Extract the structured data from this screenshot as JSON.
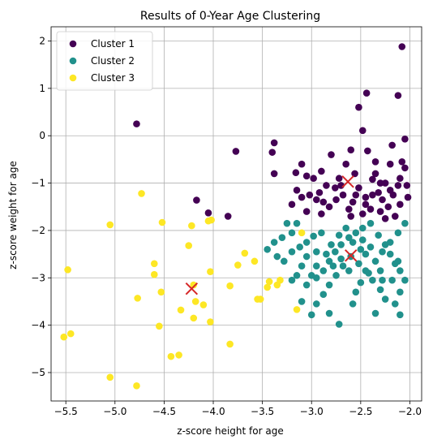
{
  "chart_data": {
    "type": "scatter",
    "title": "Results of 0-Year Age Clustering",
    "xlabel": "z-score height for age",
    "ylabel": "z-score weight for age",
    "xlim": [
      -5.65,
      -1.88
    ],
    "ylim": [
      -5.6,
      2.3
    ],
    "xticks": [
      -5.5,
      -5.0,
      -4.5,
      -4.0,
      -3.5,
      -3.0,
      -2.5,
      -2.0
    ],
    "xtick_labels": [
      "−5.5",
      "−5.0",
      "−4.5",
      "−4.0",
      "−3.5",
      "−3.0",
      "−2.5",
      "−2.0"
    ],
    "yticks": [
      -5,
      -4,
      -3,
      -2,
      -1,
      0,
      1,
      2
    ],
    "ytick_labels": [
      "−5",
      "−4",
      "−3",
      "−2",
      "−1",
      "0",
      "1",
      "2"
    ],
    "grid": true,
    "legend_position": "top-left",
    "series": [
      {
        "name": "Cluster 1",
        "color": "#440154",
        "points": [
          [
            -4.78,
            0.25
          ],
          [
            -3.77,
            -0.33
          ],
          [
            -4.17,
            -1.36
          ],
          [
            -4.05,
            -1.63
          ],
          [
            -3.85,
            -1.7
          ],
          [
            -3.38,
            -0.15
          ],
          [
            -3.4,
            -0.35
          ],
          [
            -3.38,
            -0.8
          ],
          [
            -3.16,
            -0.78
          ],
          [
            -3.1,
            -0.6
          ],
          [
            -3.05,
            -0.85
          ],
          [
            -2.98,
            -0.9
          ],
          [
            -2.92,
            -1.2
          ],
          [
            -2.9,
            -0.75
          ],
          [
            -2.8,
            -0.4
          ],
          [
            -2.72,
            -0.9
          ],
          [
            -2.7,
            -1.05
          ],
          [
            -2.65,
            -0.6
          ],
          [
            -2.6,
            -0.3
          ],
          [
            -2.52,
            0.6
          ],
          [
            -2.44,
            0.9
          ],
          [
            -2.48,
            0.11
          ],
          [
            -2.43,
            -0.32
          ],
          [
            -2.35,
            -0.55
          ],
          [
            -2.38,
            -0.92
          ],
          [
            -2.32,
            -1.2
          ],
          [
            -2.25,
            -1.0
          ],
          [
            -2.2,
            -0.6
          ],
          [
            -2.18,
            -0.2
          ],
          [
            -2.12,
            0.85
          ],
          [
            -2.08,
            1.88
          ],
          [
            -2.05,
            -0.07
          ],
          [
            -2.08,
            -0.55
          ],
          [
            -2.1,
            -0.9
          ],
          [
            -2.03,
            -1.05
          ],
          [
            -2.02,
            -1.3
          ],
          [
            -2.1,
            -1.45
          ],
          [
            -2.15,
            -1.7
          ],
          [
            -2.22,
            -1.5
          ],
          [
            -2.28,
            -1.35
          ],
          [
            -2.38,
            -1.25
          ],
          [
            -2.45,
            -1.45
          ],
          [
            -2.52,
            -1.1
          ],
          [
            -2.58,
            -1.4
          ],
          [
            -2.62,
            -1.55
          ],
          [
            -2.68,
            -1.25
          ],
          [
            -2.75,
            -1.35
          ],
          [
            -2.82,
            -1.5
          ],
          [
            -2.88,
            -1.4
          ],
          [
            -2.95,
            -1.35
          ],
          [
            -3.02,
            -1.25
          ],
          [
            -3.1,
            -1.3
          ],
          [
            -3.15,
            -1.15
          ],
          [
            -3.2,
            -1.45
          ],
          [
            -2.85,
            -1.05
          ],
          [
            -2.76,
            -1.1
          ],
          [
            -2.56,
            -0.8
          ],
          [
            -2.48,
            -1.65
          ],
          [
            -2.4,
            -1.55
          ],
          [
            -2.3,
            -1.6
          ],
          [
            -2.25,
            -1.75
          ],
          [
            -2.6,
            -1.7
          ],
          [
            -2.9,
            -1.65
          ],
          [
            -3.05,
            -1.6
          ],
          [
            -2.17,
            -1.25
          ],
          [
            -2.12,
            -1.05
          ],
          [
            -2.05,
            -0.68
          ],
          [
            -2.45,
            -1.3
          ],
          [
            -2.2,
            -1.15
          ],
          [
            -2.3,
            -1.0
          ],
          [
            -2.35,
            -0.8
          ],
          [
            -2.55,
            -1.25
          ]
        ]
      },
      {
        "name": "Cluster 2",
        "color": "#21918c",
        "points": [
          [
            -3.45,
            -2.4
          ],
          [
            -3.38,
            -2.25
          ],
          [
            -3.3,
            -2.15
          ],
          [
            -3.2,
            -2.05
          ],
          [
            -3.15,
            -1.85
          ],
          [
            -3.25,
            -1.85
          ],
          [
            -3.35,
            -2.55
          ],
          [
            -3.28,
            -2.65
          ],
          [
            -3.2,
            -2.45
          ],
          [
            -3.12,
            -2.35
          ],
          [
            -3.05,
            -2.25
          ],
          [
            -2.98,
            -2.12
          ],
          [
            -2.9,
            -2.05
          ],
          [
            -2.95,
            -2.45
          ],
          [
            -3.05,
            -2.55
          ],
          [
            -3.1,
            -2.75
          ],
          [
            -3.15,
            -2.95
          ],
          [
            -3.2,
            -3.05
          ],
          [
            -3.05,
            -3.15
          ],
          [
            -2.95,
            -3.0
          ],
          [
            -2.88,
            -2.85
          ],
          [
            -2.82,
            -2.65
          ],
          [
            -2.76,
            -2.45
          ],
          [
            -2.7,
            -2.3
          ],
          [
            -2.62,
            -2.15
          ],
          [
            -2.55,
            -2.05
          ],
          [
            -2.48,
            -1.95
          ],
          [
            -2.4,
            -1.85
          ],
          [
            -2.32,
            -2.1
          ],
          [
            -2.25,
            -2.3
          ],
          [
            -2.2,
            -2.5
          ],
          [
            -2.15,
            -2.7
          ],
          [
            -2.1,
            -2.85
          ],
          [
            -2.05,
            -3.05
          ],
          [
            -2.1,
            -3.3
          ],
          [
            -2.15,
            -3.55
          ],
          [
            -2.1,
            -3.78
          ],
          [
            -2.25,
            -3.45
          ],
          [
            -2.3,
            -3.25
          ],
          [
            -2.38,
            -3.05
          ],
          [
            -2.45,
            -2.85
          ],
          [
            -2.52,
            -2.7
          ],
          [
            -2.6,
            -2.55
          ],
          [
            -2.68,
            -2.75
          ],
          [
            -2.75,
            -2.95
          ],
          [
            -2.82,
            -3.15
          ],
          [
            -2.88,
            -3.35
          ],
          [
            -2.95,
            -3.55
          ],
          [
            -3.1,
            -3.5
          ],
          [
            -3.0,
            -3.78
          ],
          [
            -2.82,
            -3.75
          ],
          [
            -2.72,
            -3.98
          ],
          [
            -2.58,
            -3.55
          ],
          [
            -2.55,
            -3.3
          ],
          [
            -2.5,
            -3.1
          ],
          [
            -2.42,
            -2.9
          ],
          [
            -2.35,
            -2.65
          ],
          [
            -2.28,
            -2.45
          ],
          [
            -2.2,
            -2.25
          ],
          [
            -2.12,
            -2.05
          ],
          [
            -2.05,
            -1.85
          ],
          [
            -2.35,
            -3.75
          ],
          [
            -2.5,
            -2.4
          ],
          [
            -2.58,
            -2.25
          ],
          [
            -2.65,
            -1.95
          ],
          [
            -2.72,
            -2.1
          ],
          [
            -2.8,
            -2.3
          ],
          [
            -2.85,
            -2.5
          ],
          [
            -2.78,
            -2.75
          ],
          [
            -2.7,
            -2.6
          ],
          [
            -2.62,
            -2.85
          ],
          [
            -2.45,
            -2.5
          ],
          [
            -2.3,
            -2.85
          ],
          [
            -2.18,
            -3.05
          ],
          [
            -2.12,
            -2.65
          ],
          [
            -2.4,
            -2.35
          ],
          [
            -2.95,
            -2.75
          ],
          [
            -3.0,
            -2.95
          ],
          [
            -2.48,
            -2.2
          ],
          [
            -2.28,
            -3.05
          ]
        ]
      },
      {
        "name": "Cluster 3",
        "color": "#fde725",
        "points": [
          [
            -5.52,
            -4.25
          ],
          [
            -5.45,
            -4.18
          ],
          [
            -5.48,
            -2.83
          ],
          [
            -5.05,
            -1.88
          ],
          [
            -5.05,
            -5.1
          ],
          [
            -4.78,
            -5.28
          ],
          [
            -4.77,
            -3.43
          ],
          [
            -4.73,
            -1.22
          ],
          [
            -4.6,
            -2.7
          ],
          [
            -4.6,
            -2.93
          ],
          [
            -4.53,
            -3.3
          ],
          [
            -4.52,
            -1.83
          ],
          [
            -4.55,
            -4.02
          ],
          [
            -4.43,
            -4.66
          ],
          [
            -4.35,
            -4.63
          ],
          [
            -4.33,
            -3.68
          ],
          [
            -4.25,
            -2.32
          ],
          [
            -4.22,
            -1.9
          ],
          [
            -4.18,
            -3.5
          ],
          [
            -4.2,
            -3.85
          ],
          [
            -4.2,
            -3.15
          ],
          [
            -4.1,
            -3.57
          ],
          [
            -4.05,
            -1.8
          ],
          [
            -4.02,
            -1.78
          ],
          [
            -4.03,
            -2.87
          ],
          [
            -4.03,
            -3.93
          ],
          [
            -3.83,
            -3.17
          ],
          [
            -3.83,
            -4.4
          ],
          [
            -3.75,
            -2.73
          ],
          [
            -3.68,
            -2.48
          ],
          [
            -3.58,
            -2.65
          ],
          [
            -3.55,
            -3.45
          ],
          [
            -3.52,
            -3.45
          ],
          [
            -3.45,
            -3.2
          ],
          [
            -3.43,
            -3.08
          ],
          [
            -3.35,
            -3.15
          ],
          [
            -3.32,
            -3.05
          ],
          [
            -3.15,
            -3.67
          ],
          [
            -3.1,
            -2.05
          ]
        ]
      }
    ],
    "centroids": {
      "color": "#d62728",
      "marker": "x",
      "points": [
        [
          -2.63,
          -0.97
        ],
        [
          -2.6,
          -2.53
        ],
        [
          -4.22,
          -3.23
        ]
      ]
    }
  }
}
